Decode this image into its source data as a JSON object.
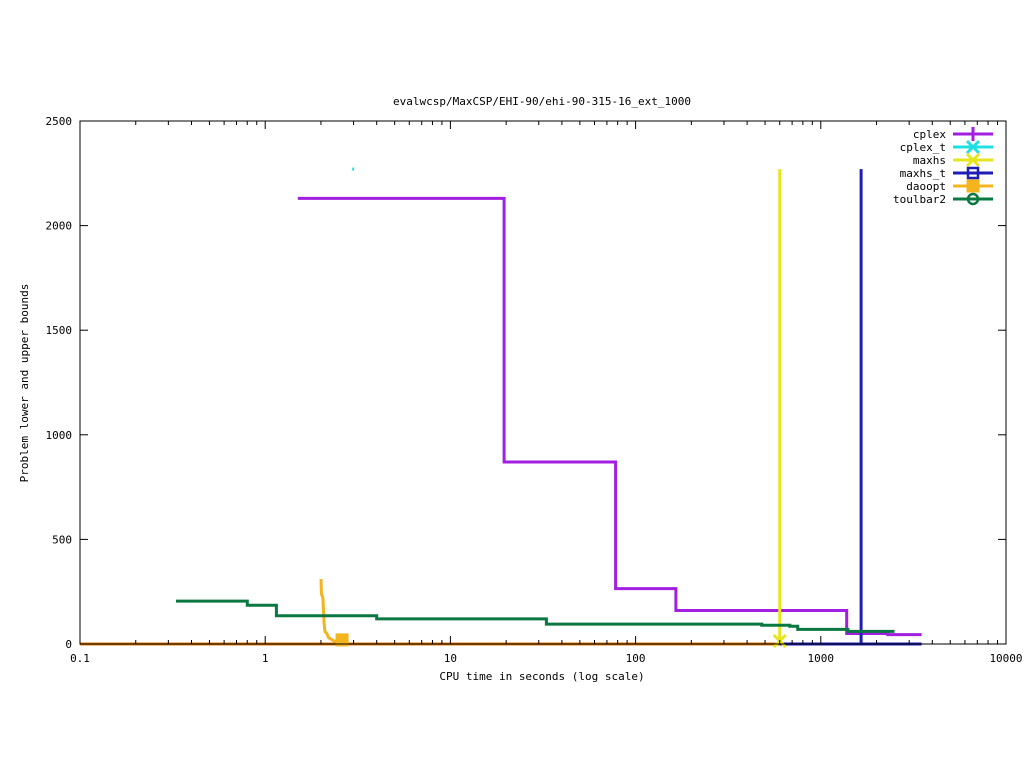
{
  "chart_data": {
    "type": "line",
    "title": "evalwcsp/MaxCSP/EHI-90/ehi-90-315-16_ext_1000",
    "xlabel": "CPU time in seconds (log scale)",
    "ylabel": "Problem lower and upper bounds",
    "xscale": "log",
    "xlim": [
      0.1,
      10000
    ],
    "ylim": [
      0,
      2500
    ],
    "xticks": [
      0.1,
      1,
      10,
      100,
      1000,
      10000
    ],
    "xtick_labels": [
      "0.1",
      "1",
      "10",
      "100",
      "1000",
      "10000"
    ],
    "yticks": [
      0,
      500,
      1000,
      1500,
      2000,
      2500
    ],
    "ytick_labels": [
      "0",
      "500",
      "1000",
      "1500",
      "2000",
      "2500"
    ],
    "grid": false,
    "legend_position": "top-right",
    "series": [
      {
        "name": "cplex",
        "color": "#a21ee0",
        "marker": "plus",
        "step": true,
        "points": [
          [
            1.5,
            2130
          ],
          [
            19.5,
            2130
          ],
          [
            19.5,
            870
          ],
          [
            78,
            870
          ],
          [
            78,
            265
          ],
          [
            165,
            265
          ],
          [
            165,
            160
          ],
          [
            1380,
            160
          ],
          [
            1380,
            50
          ],
          [
            2300,
            50
          ],
          [
            2300,
            45
          ],
          [
            3500,
            45
          ]
        ]
      },
      {
        "name": "cplex_t",
        "color": "#1ee0e0",
        "marker": "x",
        "step": false,
        "points": [
          [
            2.95,
            2270
          ],
          [
            3.02,
            2270
          ]
        ]
      },
      {
        "name": "maxhs",
        "color": "#e6e61e",
        "marker": "x",
        "step": false,
        "points": [
          [
            600,
            2270
          ],
          [
            600,
            0
          ]
        ]
      },
      {
        "name": "maxhs_t",
        "color": "#1e1eb4",
        "marker": "square",
        "step": false,
        "points": [
          [
            1650,
            2270
          ],
          [
            1650,
            0
          ]
        ]
      },
      {
        "name": "daoopt",
        "color": "#f4b41e",
        "marker": "filled-square",
        "step": false,
        "points": [
          [
            2.0,
            310
          ],
          [
            2.01,
            240
          ],
          [
            2.05,
            220
          ],
          [
            2.08,
            100
          ],
          [
            2.1,
            60
          ],
          [
            2.15,
            50
          ],
          [
            2.2,
            30
          ],
          [
            2.35,
            15
          ],
          [
            2.6,
            10
          ]
        ]
      },
      {
        "name": "toulbar2",
        "color": "#0a7840",
        "marker": "circle",
        "step": true,
        "points": [
          [
            0.33,
            205
          ],
          [
            0.8,
            205
          ],
          [
            0.8,
            185
          ],
          [
            1.15,
            185
          ],
          [
            1.15,
            135
          ],
          [
            4.0,
            135
          ],
          [
            4.0,
            120
          ],
          [
            33,
            120
          ],
          [
            33,
            95
          ],
          [
            480,
            95
          ],
          [
            480,
            90
          ],
          [
            680,
            90
          ],
          [
            680,
            85
          ],
          [
            750,
            85
          ],
          [
            750,
            70
          ],
          [
            1400,
            70
          ],
          [
            1400,
            60
          ],
          [
            2500,
            60
          ]
        ]
      },
      {
        "name": "",
        "color": "#1e1eb4",
        "marker": "none",
        "step": false,
        "points": [
          [
            480,
            0
          ],
          [
            3500,
            0
          ]
        ]
      },
      {
        "name": "",
        "color": "#e07800",
        "marker": "none",
        "step": false,
        "points": [
          [
            0.1,
            0
          ],
          [
            600,
            0
          ]
        ]
      }
    ]
  }
}
